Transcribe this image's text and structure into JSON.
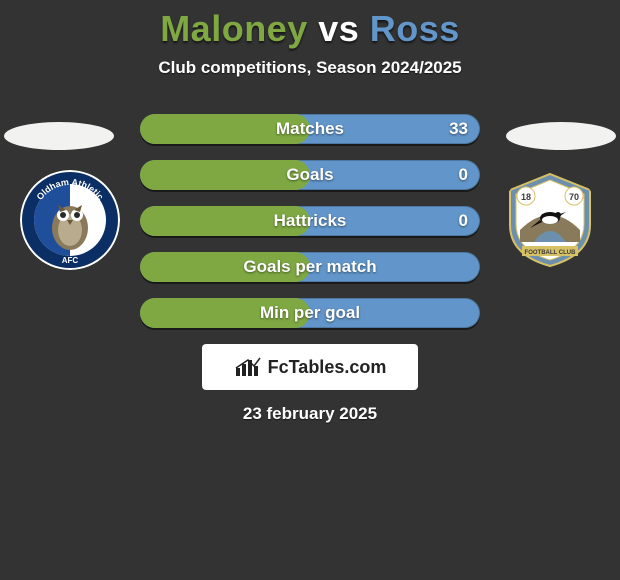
{
  "title": {
    "left": "Maloney",
    "vs": " vs ",
    "right": "Ross",
    "left_color": "#7fa843",
    "vs_color": "#ffffff",
    "right_color": "#6296ca"
  },
  "subtitle": "Club competitions, Season 2024/2025",
  "date": "23 february 2025",
  "spotlight": {
    "left_color": "#f2f2f0",
    "right_color": "#f2f2f0"
  },
  "crest_left": {
    "bg_outer": "#ffffff",
    "ring_text": "Oldham Athletic",
    "ring_bottom": "AFC",
    "ring_color": "#0b2e64",
    "inner_bg_left": "#1f4e9b",
    "inner_bg_right": "#ffffff",
    "owl_color": "#8a7a5c"
  },
  "crest_right": {
    "bg": "#6d8fae",
    "border": "#d7c167",
    "inner_bg": "#ffffff",
    "accent": "#d7c167",
    "year_left": "18",
    "year_right": "70",
    "banner_text": "FOOTBALL CLUB",
    "banner_color": "#3a3a3a"
  },
  "bars": {
    "left_color": "#7fa843",
    "right_color": "#6296ca",
    "track_color": "#6296ca",
    "label_fontsize": 17,
    "items": [
      {
        "label": "Matches",
        "left_value": "",
        "right_value": "33",
        "left_pct": 50
      },
      {
        "label": "Goals",
        "left_value": "",
        "right_value": "0",
        "left_pct": 50
      },
      {
        "label": "Hattricks",
        "left_value": "",
        "right_value": "0",
        "left_pct": 50
      },
      {
        "label": "Goals per match",
        "left_value": "",
        "right_value": "",
        "left_pct": 50
      },
      {
        "label": "Min per goal",
        "left_value": "",
        "right_value": "",
        "left_pct": 50
      }
    ]
  },
  "brand": {
    "text": "FcTables.com",
    "text_color": "#222222",
    "bg": "#ffffff"
  },
  "background_color": "#333333"
}
